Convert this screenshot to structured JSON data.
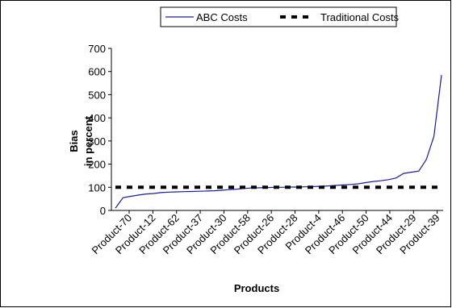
{
  "chart_data": {
    "type": "line",
    "xlabel": "Products",
    "ylabel_lines": [
      "Bias",
      "in percent"
    ],
    "ylim": [
      0,
      700
    ],
    "yticks": [
      0,
      100,
      200,
      300,
      400,
      500,
      600,
      700
    ],
    "xtick_labels": [
      "Product-70",
      "Product-12",
      "Product-62",
      "Product-37",
      "Product-30",
      "Product-58",
      "Product-26",
      "Product-28",
      "Product-4",
      "Product-46",
      "Product-50",
      "Product-44",
      "Product-29",
      "Product-39"
    ],
    "legend_position": "top",
    "grid": false,
    "series": [
      {
        "name": "ABC Costs",
        "style": "solid",
        "color": "#1a1aa0",
        "values": [
          10,
          55,
          61,
          66,
          71,
          73,
          77,
          79,
          80,
          81,
          82,
          83,
          84,
          85,
          87,
          90,
          92,
          95,
          97,
          98,
          99,
          100,
          100,
          101,
          101,
          102,
          103,
          104,
          106,
          108,
          110,
          112,
          115,
          120,
          125,
          128,
          133,
          140,
          160,
          165,
          170,
          220,
          320,
          585
        ]
      },
      {
        "name": "Traditional Costs",
        "style": "dashed",
        "color": "#000000",
        "values": [
          100,
          100
        ]
      }
    ]
  }
}
